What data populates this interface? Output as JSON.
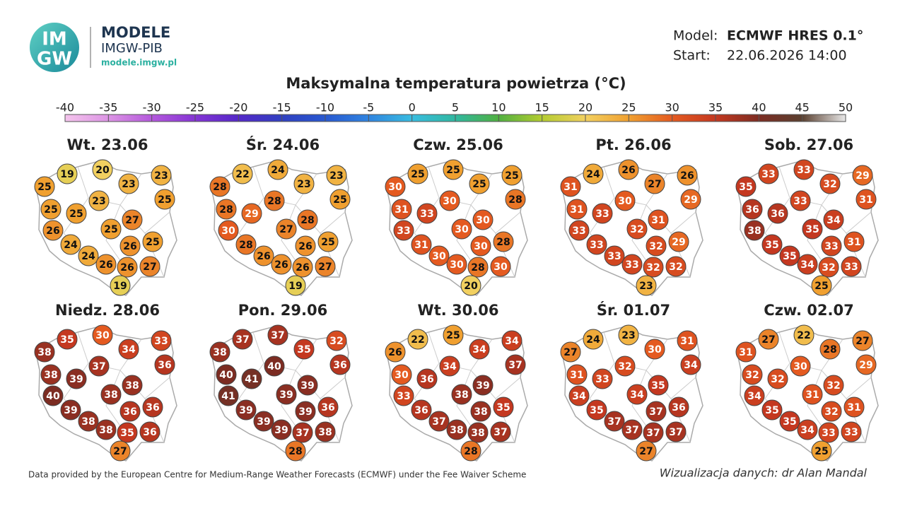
{
  "header": {
    "logo_top": "IM",
    "logo_bottom": "GW",
    "brand": "MODELE",
    "org": "IMGW-PIB",
    "url": "modele.imgw.pl",
    "model_label": "Model:",
    "model": "ECMWF HRES 0.1°",
    "start_label": "Start:",
    "start": "22.06.2026 14:00"
  },
  "chart_data": {
    "type": "map",
    "title": "Maksymalna temperatura powietrza (°C)",
    "colorbar": {
      "lim": [
        -40,
        50
      ],
      "ticks": [
        -40,
        -35,
        -30,
        -25,
        -20,
        -15,
        -10,
        -5,
        0,
        5,
        10,
        15,
        20,
        25,
        30,
        35,
        40,
        45,
        50
      ],
      "colors": [
        "#f4c4ec",
        "#dc94e4",
        "#b458dc",
        "#8434d4",
        "#5428c8",
        "#3040c0",
        "#2858d0",
        "#3084e0",
        "#38bce0",
        "#30b8a0",
        "#50b040",
        "#b4cc30",
        "#f2d060",
        "#f0a030",
        "#e45a20",
        "#c43820",
        "#7c2c22",
        "#5a4030",
        "#e8e8e8"
      ]
    },
    "panels": [
      {
        "title": "Wt. 23.06",
        "values": [
          19,
          20,
          23,
          23,
          25,
          25,
          23,
          25,
          25,
          27,
          26,
          25,
          26,
          25,
          24,
          24,
          26,
          26,
          27,
          19
        ]
      },
      {
        "title": "Śr. 24.06",
        "values": [
          22,
          24,
          23,
          23,
          28,
          25,
          28,
          28,
          29,
          28,
          30,
          27,
          26,
          25,
          28,
          26,
          26,
          26,
          27,
          19
        ]
      },
      {
        "title": "Czw. 25.06",
        "values": [
          25,
          25,
          25,
          25,
          30,
          28,
          30,
          31,
          33,
          30,
          33,
          30,
          30,
          28,
          31,
          30,
          30,
          28,
          30,
          20
        ]
      },
      {
        "title": "Pt. 26.06",
        "values": [
          24,
          26,
          27,
          26,
          31,
          29,
          30,
          31,
          33,
          31,
          33,
          32,
          32,
          29,
          33,
          33,
          33,
          32,
          32,
          23
        ]
      },
      {
        "title": "Sob. 27.06",
        "values": [
          33,
          33,
          32,
          29,
          35,
          31,
          33,
          36,
          36,
          34,
          38,
          35,
          33,
          31,
          35,
          35,
          34,
          32,
          33,
          25
        ]
      },
      {
        "title": "Niedz. 28.06",
        "values": [
          35,
          30,
          34,
          33,
          38,
          36,
          37,
          38,
          39,
          38,
          40,
          38,
          36,
          36,
          39,
          38,
          38,
          35,
          36,
          27
        ]
      },
      {
        "title": "Pon. 29.06",
        "values": [
          37,
          37,
          35,
          32,
          38,
          36,
          40,
          40,
          41,
          39,
          41,
          39,
          39,
          36,
          39,
          39,
          39,
          37,
          38,
          28
        ]
      },
      {
        "title": "Wt. 30.06",
        "values": [
          22,
          25,
          34,
          34,
          26,
          37,
          34,
          30,
          36,
          39,
          33,
          38,
          38,
          35,
          36,
          37,
          38,
          38,
          37,
          28
        ]
      },
      {
        "title": "Śr. 01.07",
        "values": [
          24,
          23,
          30,
          31,
          27,
          34,
          32,
          31,
          33,
          35,
          34,
          34,
          37,
          36,
          35,
          37,
          37,
          37,
          37,
          27
        ]
      },
      {
        "title": "Czw. 02.07",
        "values": [
          27,
          22,
          28,
          27,
          31,
          29,
          30,
          32,
          32,
          32,
          34,
          31,
          32,
          31,
          35,
          35,
          34,
          33,
          33,
          25
        ]
      }
    ]
  },
  "footer": {
    "source": "Data provided by the European Centre for Medium-Range Weather Forecasts (ECMWF) under the Fee Waiver Scheme",
    "credit": "Wizualizacja danych: dr Alan Mandal"
  }
}
